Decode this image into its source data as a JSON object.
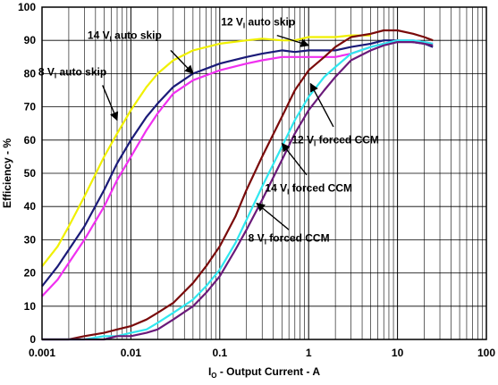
{
  "chart_data": {
    "type": "line",
    "title": "",
    "xlabel": {
      "main": "I",
      "sub": "O",
      "rest": " - Output Current - A"
    },
    "ylabel": "Efficiency - %",
    "xscale": "log",
    "xlim": [
      0.001,
      100
    ],
    "ylim": [
      0,
      100
    ],
    "grid": true,
    "x_ticks": [
      "0.001",
      "0.01",
      "0.1",
      "1",
      "10",
      "100"
    ],
    "y_ticks": [
      "0",
      "10",
      "20",
      "30",
      "40",
      "50",
      "60",
      "70",
      "80",
      "90",
      "100"
    ],
    "colors": {
      "yellow": "#f0f000",
      "navy": "#1a1a78",
      "magenta": "#f030f0",
      "darkred": "#7a0a0a",
      "cyan": "#30e8f0",
      "purple": "#6a1a7a"
    },
    "series": [
      {
        "color": "yellow",
        "x": [
          0.001,
          0.0015,
          0.002,
          0.003,
          0.005,
          0.007,
          0.01,
          0.015,
          0.02,
          0.03,
          0.05,
          0.1,
          0.2,
          0.3,
          0.5,
          0.7,
          1,
          2,
          3,
          4,
          5
        ],
        "y": [
          22,
          28,
          34,
          43,
          55,
          62,
          69,
          76,
          80,
          84,
          87,
          89,
          90,
          90.5,
          90,
          90,
          91,
          91,
          91.5,
          91.5,
          91.5
        ]
      },
      {
        "color": "navy",
        "x": [
          0.001,
          0.0015,
          0.002,
          0.003,
          0.005,
          0.007,
          0.01,
          0.015,
          0.02,
          0.03,
          0.05,
          0.1,
          0.2,
          0.3,
          0.5,
          0.7,
          1,
          2,
          3,
          5,
          7,
          10,
          15,
          20,
          25
        ],
        "y": [
          16,
          22,
          27,
          34,
          45,
          53,
          60,
          67,
          71,
          76,
          80,
          83,
          85,
          86,
          87,
          86.5,
          87,
          87,
          88,
          89,
          90,
          90,
          89.5,
          89,
          88
        ]
      },
      {
        "color": "magenta",
        "x": [
          0.001,
          0.0015,
          0.002,
          0.003,
          0.005,
          0.007,
          0.01,
          0.015,
          0.02,
          0.03,
          0.05,
          0.1,
          0.2,
          0.3,
          0.5,
          0.7,
          1,
          2,
          3,
          5,
          7,
          10,
          15,
          20,
          25
        ],
        "y": [
          13,
          18,
          23,
          30,
          40,
          48,
          55,
          63,
          68,
          74,
          78,
          81,
          83,
          84,
          85,
          85,
          85,
          85,
          86,
          88,
          89,
          90,
          90,
          89.5,
          89
        ]
      },
      {
        "color": "darkred",
        "x": [
          0.001,
          0.002,
          0.003,
          0.005,
          0.007,
          0.01,
          0.015,
          0.02,
          0.03,
          0.05,
          0.07,
          0.1,
          0.15,
          0.2,
          0.3,
          0.5,
          0.7,
          1,
          1.5,
          2,
          3,
          5,
          7,
          10,
          15,
          20,
          25
        ],
        "y": [
          0,
          0,
          1,
          2,
          3,
          4,
          6,
          8,
          11,
          17,
          22,
          28,
          37,
          45,
          55,
          67,
          75,
          81,
          85,
          88,
          91,
          92,
          93,
          93,
          92,
          91,
          90
        ]
      },
      {
        "color": "cyan",
        "x": [
          0.001,
          0.002,
          0.003,
          0.005,
          0.007,
          0.01,
          0.015,
          0.02,
          0.03,
          0.05,
          0.07,
          0.1,
          0.15,
          0.2,
          0.3,
          0.5,
          0.7,
          1,
          1.5,
          2,
          3,
          5,
          7,
          10,
          15,
          20,
          25
        ],
        "y": [
          0,
          0,
          0,
          1,
          1,
          2,
          3,
          5,
          8,
          12,
          16,
          21,
          29,
          36,
          46,
          58,
          66,
          73,
          79,
          82,
          86,
          88,
          89,
          90,
          90,
          89.5,
          89
        ]
      },
      {
        "color": "purple",
        "x": [
          0.001,
          0.002,
          0.003,
          0.005,
          0.007,
          0.01,
          0.015,
          0.02,
          0.03,
          0.05,
          0.07,
          0.1,
          0.15,
          0.2,
          0.3,
          0.5,
          0.7,
          1,
          1.5,
          2,
          3,
          5,
          7,
          10,
          15,
          20,
          25
        ],
        "y": [
          0,
          0,
          0,
          0,
          1,
          1,
          2,
          3,
          6,
          10,
          14,
          19,
          27,
          33,
          42,
          54,
          62,
          69,
          75,
          79,
          84,
          87,
          88.5,
          89.5,
          89.5,
          89,
          88.5
        ]
      }
    ],
    "annotations": [
      {
        "main": "12 V",
        "sub": "I",
        "rest": " auto skip",
        "text_at": [
          0.27,
          94.5
        ],
        "arrow_from": [
          0.44,
          91.5
        ],
        "arrow_to": [
          1.0,
          88.5
        ]
      },
      {
        "main": "14 V",
        "sub": "I",
        "rest": " auto skip",
        "text_at": [
          0.0085,
          90.5
        ],
        "arrow_from": [
          0.028,
          87
        ],
        "arrow_to": [
          0.05,
          80
        ]
      },
      {
        "main": "8 V",
        "sub": "I",
        "rest": " auto skip",
        "text_at": [
          0.0022,
          79.5
        ],
        "arrow_from": [
          0.0048,
          76.5
        ],
        "arrow_to": [
          0.007,
          66
        ]
      },
      {
        "main": "12 V",
        "sub": "I",
        "rest": " forced CCM",
        "text_at": [
          2.0,
          59
        ],
        "arrow_from": [
          1.9,
          64
        ],
        "arrow_to": [
          1.05,
          77
        ]
      },
      {
        "main": "14 V",
        "sub": "I",
        "rest": " forced CCM",
        "text_at": [
          1.0,
          44.5
        ],
        "arrow_from": [
          0.95,
          49.5
        ],
        "arrow_to": [
          0.5,
          59
        ]
      },
      {
        "main": "8 V",
        "sub": "I",
        "rest": " forced CCM",
        "text_at": [
          0.6,
          29.5
        ],
        "arrow_from": [
          0.6,
          33
        ],
        "arrow_to": [
          0.26,
          41
        ]
      }
    ]
  }
}
